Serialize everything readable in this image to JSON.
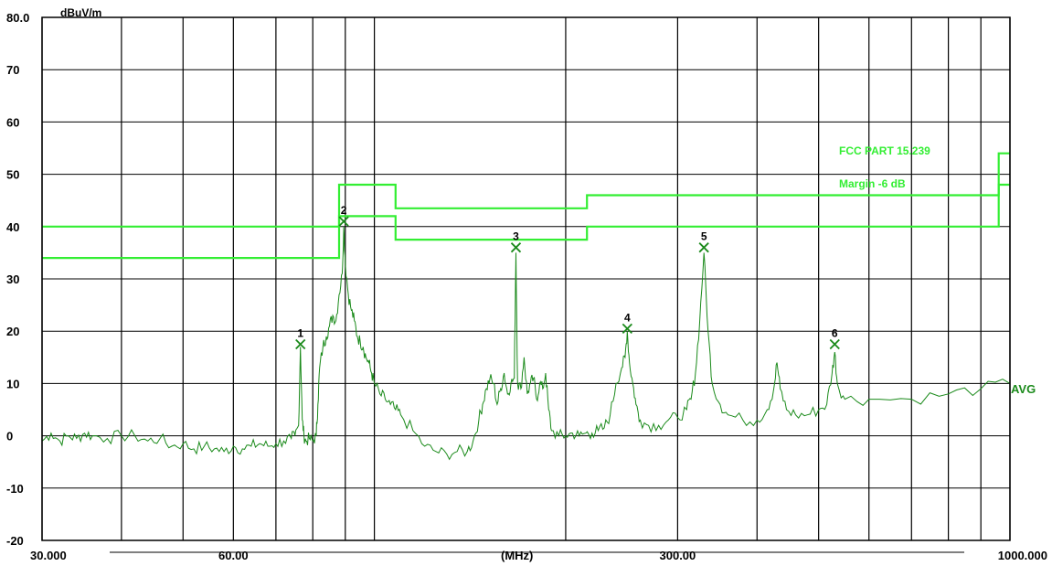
{
  "chart_data": {
    "type": "line",
    "y_unit": "dBuV/m",
    "x_unit": "(MHz)",
    "x_scale": "log",
    "xlim": [
      30,
      1000
    ],
    "ylim": [
      -20,
      80
    ],
    "y_ticks": [
      80,
      70,
      60,
      50,
      40,
      30,
      20,
      10,
      0,
      -10,
      -20
    ],
    "y_tick_labels": [
      "80.0",
      "70",
      "60",
      "50",
      "40",
      "30",
      "20",
      "10",
      "0",
      "-10",
      "-20"
    ],
    "x_tick_labels": [
      {
        "x": 30,
        "label": "30.000"
      },
      {
        "x": 60,
        "label": "60.00"
      },
      {
        "x": 300,
        "label": "300.00"
      },
      {
        "x": 1000,
        "label": "1000.000"
      }
    ],
    "grid_x": [
      30,
      40,
      50,
      60,
      70,
      80,
      90,
      100,
      200,
      300,
      400,
      500,
      600,
      700,
      800,
      900,
      1000
    ],
    "limit_lines": [
      {
        "name": "FCC PART 15.239",
        "points": [
          [
            30,
            40
          ],
          [
            88,
            40
          ],
          [
            88,
            48
          ],
          [
            108,
            48
          ],
          [
            108,
            43.5
          ],
          [
            216,
            43.5
          ],
          [
            216,
            46
          ],
          [
            960,
            46
          ],
          [
            960,
            54
          ],
          [
            1000,
            54
          ]
        ]
      },
      {
        "name": "Margin -6 dB",
        "points": [
          [
            30,
            34
          ],
          [
            88,
            34
          ],
          [
            88,
            42
          ],
          [
            108,
            42
          ],
          [
            108,
            37.5
          ],
          [
            216,
            37.5
          ],
          [
            216,
            40
          ],
          [
            960,
            40
          ],
          [
            960,
            48
          ],
          [
            1000,
            48
          ]
        ]
      }
    ],
    "markers": [
      {
        "label": "1",
        "x": 76.5,
        "y": 17.5
      },
      {
        "label": "2",
        "x": 89.5,
        "y": 41.0
      },
      {
        "label": "3",
        "x": 167.0,
        "y": 36.0
      },
      {
        "label": "4",
        "x": 250.0,
        "y": 20.5
      },
      {
        "label": "5",
        "x": 330.0,
        "y": 36.0
      },
      {
        "label": "6",
        "x": 530.0,
        "y": 17.5
      }
    ],
    "trace": {
      "name": "AVG",
      "points": [
        [
          30,
          -1
        ],
        [
          31,
          0.5
        ],
        [
          32,
          -1
        ],
        [
          33,
          0
        ],
        [
          34,
          -0.5
        ],
        [
          35,
          0.5
        ],
        [
          36,
          0
        ],
        [
          38,
          -0.5
        ],
        [
          40,
          0
        ],
        [
          42,
          0
        ],
        [
          44,
          -1
        ],
        [
          46,
          -0.5
        ],
        [
          48,
          -2
        ],
        [
          50,
          -1.5
        ],
        [
          52,
          -2.5
        ],
        [
          54,
          -2
        ],
        [
          56,
          -2.5
        ],
        [
          58,
          -3
        ],
        [
          60,
          -2
        ],
        [
          62,
          -2.5
        ],
        [
          64,
          -2
        ],
        [
          66,
          -1.5
        ],
        [
          68,
          -2
        ],
        [
          70,
          -1.5
        ],
        [
          72,
          -1
        ],
        [
          74,
          -0.5
        ],
        [
          75,
          0
        ],
        [
          76,
          2
        ],
        [
          76.5,
          17
        ],
        [
          77,
          3
        ],
        [
          77.5,
          0
        ],
        [
          78,
          -1
        ],
        [
          79,
          -0.5
        ],
        [
          80,
          -1
        ],
        [
          81,
          0
        ],
        [
          81.5,
          6
        ],
        [
          82,
          13
        ],
        [
          83,
          17
        ],
        [
          84,
          19
        ],
        [
          85,
          21
        ],
        [
          86,
          23
        ],
        [
          87,
          22
        ],
        [
          88,
          27
        ],
        [
          89,
          31
        ],
        [
          89.5,
          40
        ],
        [
          90,
          33
        ],
        [
          91,
          27
        ],
        [
          92,
          24
        ],
        [
          93,
          22
        ],
        [
          94,
          19
        ],
        [
          95,
          18
        ],
        [
          96,
          17
        ],
        [
          97,
          15
        ],
        [
          98,
          14
        ],
        [
          99,
          12
        ],
        [
          100,
          10
        ],
        [
          102,
          8
        ],
        [
          104,
          7
        ],
        [
          106,
          6
        ],
        [
          108,
          5
        ],
        [
          110,
          4
        ],
        [
          115,
          1
        ],
        [
          120,
          -2
        ],
        [
          125,
          -3
        ],
        [
          130,
          -3.5
        ],
        [
          135,
          -3
        ],
        [
          140,
          -3
        ],
        [
          143,
          -1
        ],
        [
          146,
          3
        ],
        [
          148,
          6
        ],
        [
          150,
          9
        ],
        [
          152,
          11
        ],
        [
          154,
          10
        ],
        [
          156,
          6
        ],
        [
          158,
          9
        ],
        [
          160,
          12
        ],
        [
          162,
          8
        ],
        [
          164,
          10
        ],
        [
          166,
          11
        ],
        [
          167,
          35
        ],
        [
          168,
          10
        ],
        [
          170,
          9
        ],
        [
          172,
          15
        ],
        [
          174,
          8
        ],
        [
          176,
          10
        ],
        [
          178,
          11
        ],
        [
          180,
          7
        ],
        [
          182,
          10
        ],
        [
          184,
          9
        ],
        [
          186,
          12
        ],
        [
          188,
          5
        ],
        [
          190,
          1
        ],
        [
          195,
          0
        ],
        [
          200,
          0
        ],
        [
          205,
          0.5
        ],
        [
          210,
          0
        ],
        [
          215,
          0.5
        ],
        [
          220,
          0.5
        ],
        [
          225,
          1
        ],
        [
          230,
          1.5
        ],
        [
          235,
          4
        ],
        [
          240,
          10
        ],
        [
          245,
          13
        ],
        [
          248,
          15
        ],
        [
          250,
          20
        ],
        [
          252,
          14
        ],
        [
          255,
          10
        ],
        [
          258,
          6
        ],
        [
          262,
          3
        ],
        [
          270,
          2
        ],
        [
          280,
          2
        ],
        [
          290,
          3
        ],
        [
          300,
          3.5
        ],
        [
          310,
          5
        ],
        [
          315,
          7
        ],
        [
          320,
          12
        ],
        [
          325,
          22
        ],
        [
          330,
          35
        ],
        [
          335,
          20
        ],
        [
          340,
          10
        ],
        [
          350,
          6
        ],
        [
          360,
          4
        ],
        [
          380,
          3
        ],
        [
          400,
          3
        ],
        [
          415,
          5
        ],
        [
          425,
          9
        ],
        [
          430,
          14
        ],
        [
          435,
          9
        ],
        [
          445,
          5
        ],
        [
          460,
          4
        ],
        [
          480,
          4
        ],
        [
          500,
          5
        ],
        [
          515,
          6
        ],
        [
          525,
          12
        ],
        [
          530,
          16
        ],
        [
          535,
          10
        ],
        [
          550,
          7
        ],
        [
          600,
          7
        ],
        [
          700,
          7
        ],
        [
          800,
          8
        ],
        [
          900,
          9
        ],
        [
          1000,
          10
        ]
      ]
    }
  },
  "legend": {
    "limit_label": "FCC PART 15.239",
    "margin_label": "Margin -6 dB"
  }
}
